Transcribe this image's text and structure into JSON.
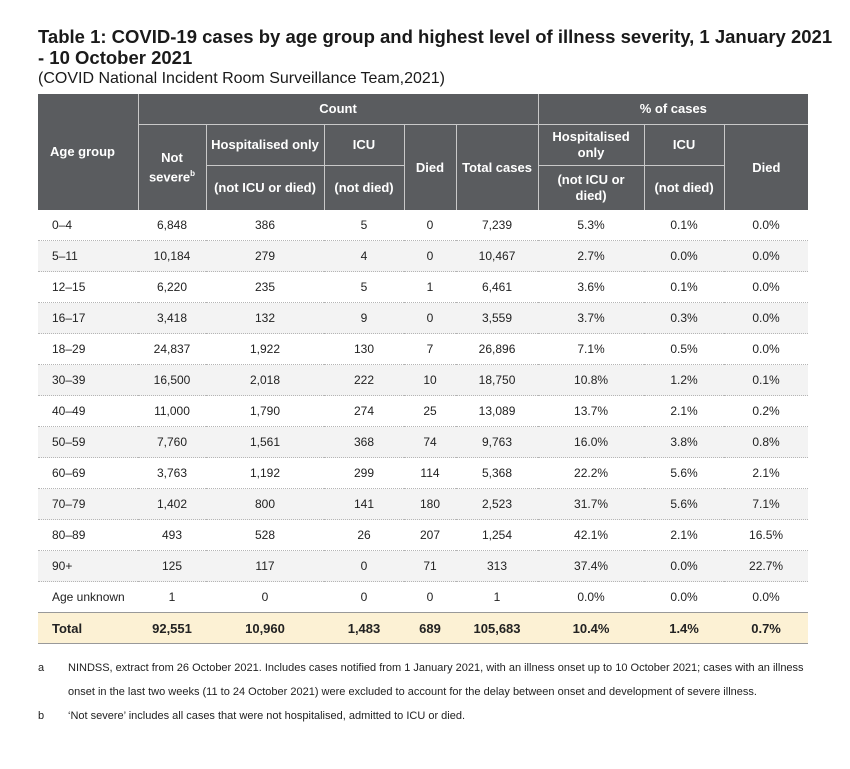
{
  "title": "Table 1: COVID-19 cases by age group and highest level of illness severity, 1 January 2021 - 10 October 2021",
  "subtitle": "(COVID National Incident Room Surveillance Team,2021)",
  "header": {
    "age_group": "Age group",
    "count": "Count",
    "pct": "% of cases",
    "not_severe": "Not severe",
    "not_severe_sup": "b",
    "hosp_only": "Hospitalised only",
    "hosp_only_sub": "(not ICU or died)",
    "icu": "ICU",
    "icu_sub": "(not died)",
    "died": "Died",
    "total_cases": "Total cases",
    "pct_hosp": "Hospitalised only",
    "pct_hosp_sub": "(not ICU or died)",
    "pct_icu": "ICU",
    "pct_icu_sub": "(not died)",
    "pct_died": "Died"
  },
  "rows": [
    {
      "age": "0–4",
      "not_severe": "6,848",
      "hosp": "386",
      "icu": "5",
      "died": "0",
      "total": "7,239",
      "p_hosp": "5.3%",
      "p_icu": "0.1%",
      "p_died": "0.0%"
    },
    {
      "age": "5–11",
      "not_severe": "10,184",
      "hosp": "279",
      "icu": "4",
      "died": "0",
      "total": "10,467",
      "p_hosp": "2.7%",
      "p_icu": "0.0%",
      "p_died": "0.0%"
    },
    {
      "age": "12–15",
      "not_severe": "6,220",
      "hosp": "235",
      "icu": "5",
      "died": "1",
      "total": "6,461",
      "p_hosp": "3.6%",
      "p_icu": "0.1%",
      "p_died": "0.0%"
    },
    {
      "age": "16–17",
      "not_severe": "3,418",
      "hosp": "132",
      "icu": "9",
      "died": "0",
      "total": "3,559",
      "p_hosp": "3.7%",
      "p_icu": "0.3%",
      "p_died": "0.0%"
    },
    {
      "age": "18–29",
      "not_severe": "24,837",
      "hosp": "1,922",
      "icu": "130",
      "died": "7",
      "total": "26,896",
      "p_hosp": "7.1%",
      "p_icu": "0.5%",
      "p_died": "0.0%"
    },
    {
      "age": "30–39",
      "not_severe": "16,500",
      "hosp": "2,018",
      "icu": "222",
      "died": "10",
      "total": "18,750",
      "p_hosp": "10.8%",
      "p_icu": "1.2%",
      "p_died": "0.1%"
    },
    {
      "age": "40–49",
      "not_severe": "11,000",
      "hosp": "1,790",
      "icu": "274",
      "died": "25",
      "total": "13,089",
      "p_hosp": "13.7%",
      "p_icu": "2.1%",
      "p_died": "0.2%"
    },
    {
      "age": "50–59",
      "not_severe": "7,760",
      "hosp": "1,561",
      "icu": "368",
      "died": "74",
      "total": "9,763",
      "p_hosp": "16.0%",
      "p_icu": "3.8%",
      "p_died": "0.8%"
    },
    {
      "age": "60–69",
      "not_severe": "3,763",
      "hosp": "1,192",
      "icu": "299",
      "died": "114",
      "total": "5,368",
      "p_hosp": "22.2%",
      "p_icu": "5.6%",
      "p_died": "2.1%"
    },
    {
      "age": "70–79",
      "not_severe": "1,402",
      "hosp": "800",
      "icu": "141",
      "died": "180",
      "total": "2,523",
      "p_hosp": "31.7%",
      "p_icu": "5.6%",
      "p_died": "7.1%"
    },
    {
      "age": "80–89",
      "not_severe": "493",
      "hosp": "528",
      "icu": "26",
      "died": "207",
      "total": "1,254",
      "p_hosp": "42.1%",
      "p_icu": "2.1%",
      "p_died": "16.5%"
    },
    {
      "age": "90+",
      "not_severe": "125",
      "hosp": "117",
      "icu": "0",
      "died": "71",
      "total": "313",
      "p_hosp": "37.4%",
      "p_icu": "0.0%",
      "p_died": "22.7%"
    },
    {
      "age": "Age unknown",
      "not_severe": "1",
      "hosp": "0",
      "icu": "0",
      "died": "0",
      "total": "1",
      "p_hosp": "0.0%",
      "p_icu": "0.0%",
      "p_died": "0.0%"
    }
  ],
  "total": {
    "age": "Total",
    "not_severe": "92,551",
    "hosp": "10,960",
    "icu": "1,483",
    "died": "689",
    "total": "105,683",
    "p_hosp": "10.4%",
    "p_icu": "1.4%",
    "p_died": "0.7%"
  },
  "footnotes": [
    {
      "mark": "a",
      "text": "NINDSS, extract from 26 October 2021. Includes cases notified from 1 January 2021, with an illness onset up to 10 October 2021; cases with an illness onset in the last two weeks (11 to 24 October 2021) were excluded to account for the delay between onset and development of severe illness."
    },
    {
      "mark": "b",
      "text": "‘Not severe’ includes all cases that were not hospitalised, admitted to ICU or died."
    }
  ],
  "colors": {
    "header_bg": "#5a5c5f",
    "total_bg": "#fcf1d4",
    "stripe_bg": "#f3f3f3"
  }
}
